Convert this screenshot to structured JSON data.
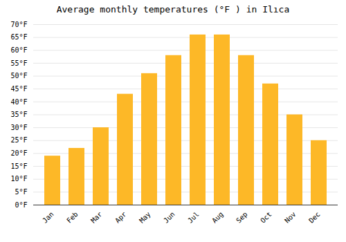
{
  "chart_data": {
    "type": "bar",
    "title": "Average monthly temperatures (°F ) in Ilıca",
    "categories": [
      "Jan",
      "Feb",
      "Mar",
      "Apr",
      "May",
      "Jun",
      "Jul",
      "Aug",
      "Sep",
      "Oct",
      "Nov",
      "Dec"
    ],
    "values": [
      19,
      22,
      30,
      43,
      51,
      58,
      66,
      66,
      58,
      47,
      35,
      25
    ],
    "color": "#FDB827",
    "ylim": [
      0,
      70
    ],
    "yticks": [
      {
        "value": 0,
        "label": "0°F"
      },
      {
        "value": 5,
        "label": "5°F"
      },
      {
        "value": 10,
        "label": "10°F"
      },
      {
        "value": 15,
        "label": "15°F"
      },
      {
        "value": 20,
        "label": "20°F"
      },
      {
        "value": 25,
        "label": "25°F"
      },
      {
        "value": 30,
        "label": "30°F"
      },
      {
        "value": 35,
        "label": "35°F"
      },
      {
        "value": 40,
        "label": "40°F"
      },
      {
        "value": 45,
        "label": "45°F"
      },
      {
        "value": 50,
        "label": "50°F"
      },
      {
        "value": 55,
        "label": "55°F"
      },
      {
        "value": 60,
        "label": "60°F"
      },
      {
        "value": 65,
        "label": "65°F"
      },
      {
        "value": 70,
        "label": "70°F"
      }
    ],
    "grid": true
  }
}
